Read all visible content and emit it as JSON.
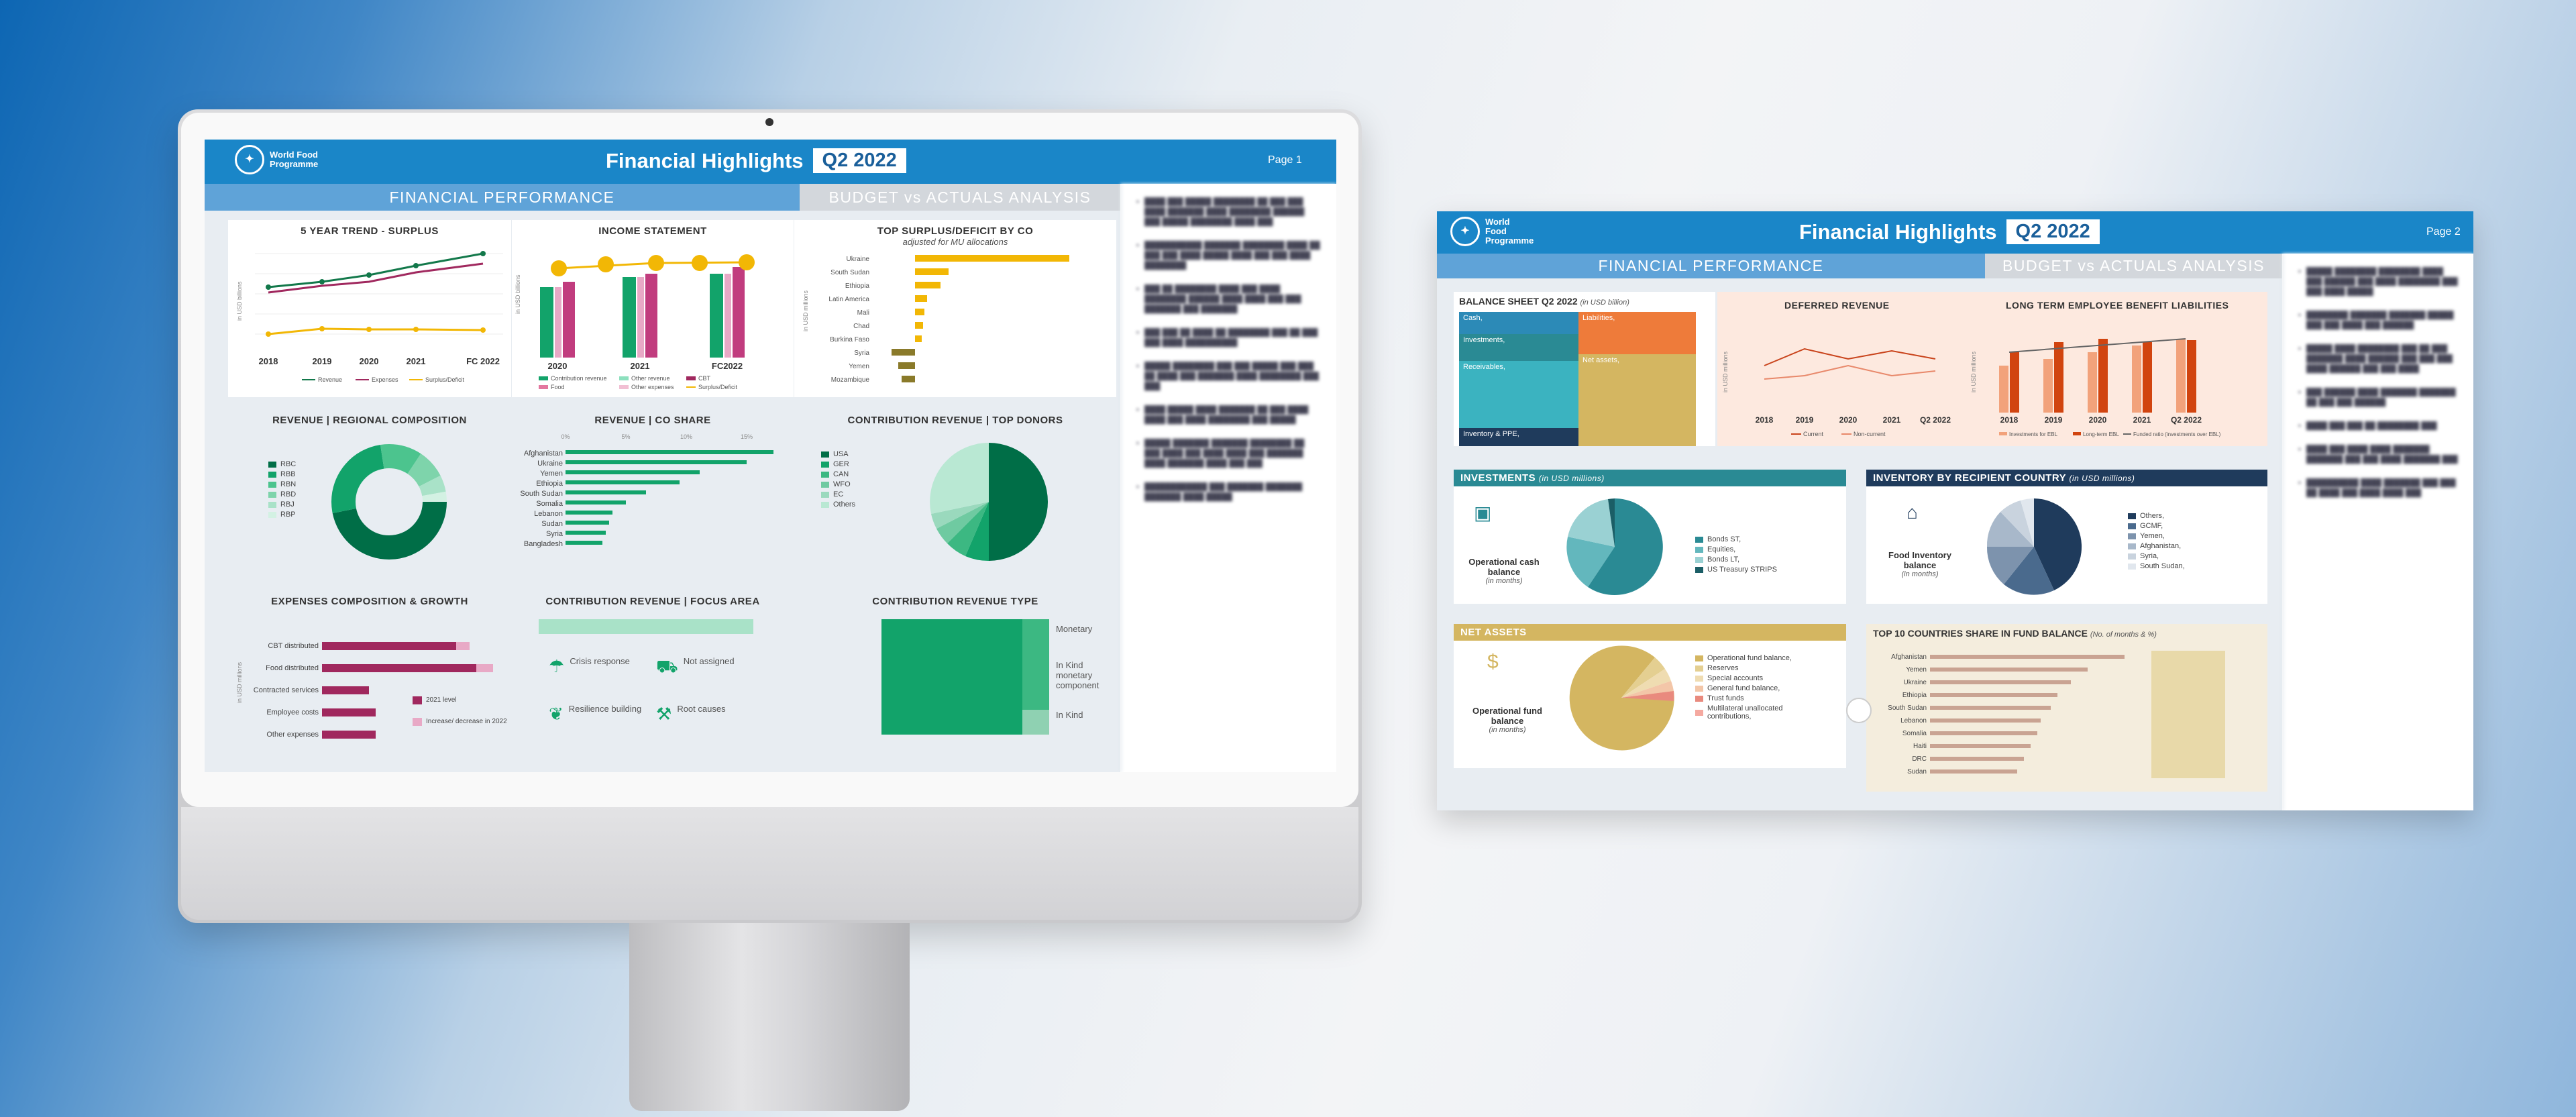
{
  "page1": {
    "logo": "World Food Programme",
    "title": "Financial Highlights",
    "quarter": "Q2 2022",
    "page_label": "Page 1",
    "tab_active": "FINANCIAL PERFORMANCE",
    "tab_inactive": "BUDGET vs ACTUALS ANALYSIS",
    "trend": {
      "title": "5 YEAR TREND - SURPLUS",
      "ylabel": "in USD billions",
      "years": [
        "2018",
        "2019",
        "2020",
        "2021",
        "FC 2022"
      ],
      "legend": [
        "Revenue",
        "Expenses",
        "Surplus/Deficit"
      ]
    },
    "income": {
      "title": "INCOME STATEMENT",
      "ylabel": "in USD billions",
      "years": [
        "2020",
        "2021",
        "FC2022"
      ],
      "legend": [
        "Contribution revenue",
        "Other revenue",
        "CBT",
        "Food",
        "Other expenses",
        "Surplus/Deficit"
      ]
    },
    "surplus": {
      "title": "TOP SURPLUS/DEFICIT BY CO",
      "subtitle": "adjusted for MU allocations",
      "ylabel": "in USD millions",
      "countries": [
        "Ukraine",
        "South Sudan",
        "Ethiopia",
        "Latin America",
        "Mali",
        "Chad",
        "Burkina Faso",
        "Syria",
        "Yemen",
        "Mozambique"
      ]
    },
    "regional": {
      "title": "REVENUE | REGIONAL COMPOSITION",
      "legend": [
        "RBC",
        "RBB",
        "RBN",
        "RBD",
        "RBJ",
        "RBP"
      ]
    },
    "coshare": {
      "title": "REVENUE | CO SHARE",
      "ticks": [
        "0%",
        "5%",
        "10%",
        "15%"
      ],
      "countries": [
        "Afghanistan",
        "Ukraine",
        "Yemen",
        "Ethiopia",
        "South Sudan",
        "Somalia",
        "Lebanon",
        "Sudan",
        "Syria",
        "Bangladesh"
      ]
    },
    "donors": {
      "title": "CONTRIBUTION REVENUE | TOP DONORS",
      "legend": [
        "USA",
        "GER",
        "CAN",
        "WFO",
        "EC",
        "Others"
      ]
    },
    "expenses": {
      "title": "EXPENSES COMPOSITION & GROWTH",
      "ylabel": "in USD millions",
      "categories": [
        "CBT distributed",
        "Food distributed",
        "Contracted services",
        "Employee costs",
        "Other expenses"
      ],
      "legend": [
        "2021 level",
        "Increase/ decrease in 2022"
      ]
    },
    "focus": {
      "title": "CONTRIBUTION REVENUE | FOCUS AREA",
      "items": [
        "Crisis response",
        "Not assigned",
        "Resilience building",
        "Root causes"
      ]
    },
    "ctype": {
      "title": "CONTRIBUTION REVENUE TYPE",
      "items": [
        "Monetary",
        "In Kind monetary component",
        "In Kind"
      ]
    }
  },
  "page2": {
    "logo": "World Food Programme",
    "title": "Financial Highlights",
    "quarter": "Q2 2022",
    "page_label": "Page 2",
    "tab_active": "FINANCIAL PERFORMANCE",
    "tab_inactive": "BUDGET vs ACTUALS ANALYSIS",
    "balance": {
      "title": "BALANCE SHEET Q2 2022",
      "unit": "(in USD billion)",
      "items": [
        "Cash,",
        "Investments,",
        "Receivables,",
        "Inventory & PPE,",
        "Liabilities,",
        "Net assets,"
      ]
    },
    "deferred": {
      "title": "DEFERRED REVENUE",
      "ylabel": "in USD millions",
      "years": [
        "2018",
        "2019",
        "2020",
        "2021",
        "Q2 2022"
      ],
      "legend": [
        "Current",
        "Non-current"
      ]
    },
    "ltebl": {
      "title": "LONG TERM EMPLOYEE BENEFIT LIABILITIES",
      "ylabel": "in USD millions",
      "years": [
        "2018",
        "2019",
        "2020",
        "2021",
        "Q2 2022"
      ],
      "legend": [
        "Investments for EBL",
        "Long-term EBL",
        "Funded ratio (investments over EBL)"
      ]
    },
    "investments": {
      "title": "INVESTMENTS",
      "unit": "(in USD millions)",
      "caption": "Operational cash balance",
      "months": "(in months)",
      "legend": [
        "Bonds ST,",
        "Equities,",
        "Bonds LT,",
        "US Treasury STRIPS"
      ]
    },
    "inventory": {
      "title": "INVENTORY BY RECIPIENT COUNTRY",
      "unit": "(in USD millions)",
      "caption": "Food Inventory balance",
      "months": "(in months)",
      "legend": [
        "Others,",
        "GCMF,",
        "Yemen,",
        "Afghanistan,",
        "Syria,",
        "South Sudan,"
      ]
    },
    "netassets": {
      "title": "NET ASSETS",
      "caption": "Operational fund balance",
      "months": "(in months)",
      "legend": [
        "Operational fund balance,",
        "Reserves",
        "Special accounts",
        "General fund balance,",
        "Trust funds",
        "Multilateral unallocated contributions,"
      ]
    },
    "top10": {
      "title": "TOP 10 COUNTRIES SHARE IN FUND BALANCE",
      "unit": "(No. of months & %)",
      "countries": [
        "Afghanistan",
        "Yemen",
        "Ukraine",
        "Ethiopia",
        "South Sudan",
        "Lebanon",
        "Somalia",
        "Haiti",
        "DRC",
        "Sudan"
      ]
    }
  },
  "colors": {
    "wfp_blue": "#1a86c8",
    "green_dark": "#006e47",
    "green": "#12a36a",
    "magenta": "#a0285e",
    "gold": "#f2b705",
    "teal": "#2a8a94",
    "navy": "#1f3b5c",
    "tan": "#d4b661"
  }
}
